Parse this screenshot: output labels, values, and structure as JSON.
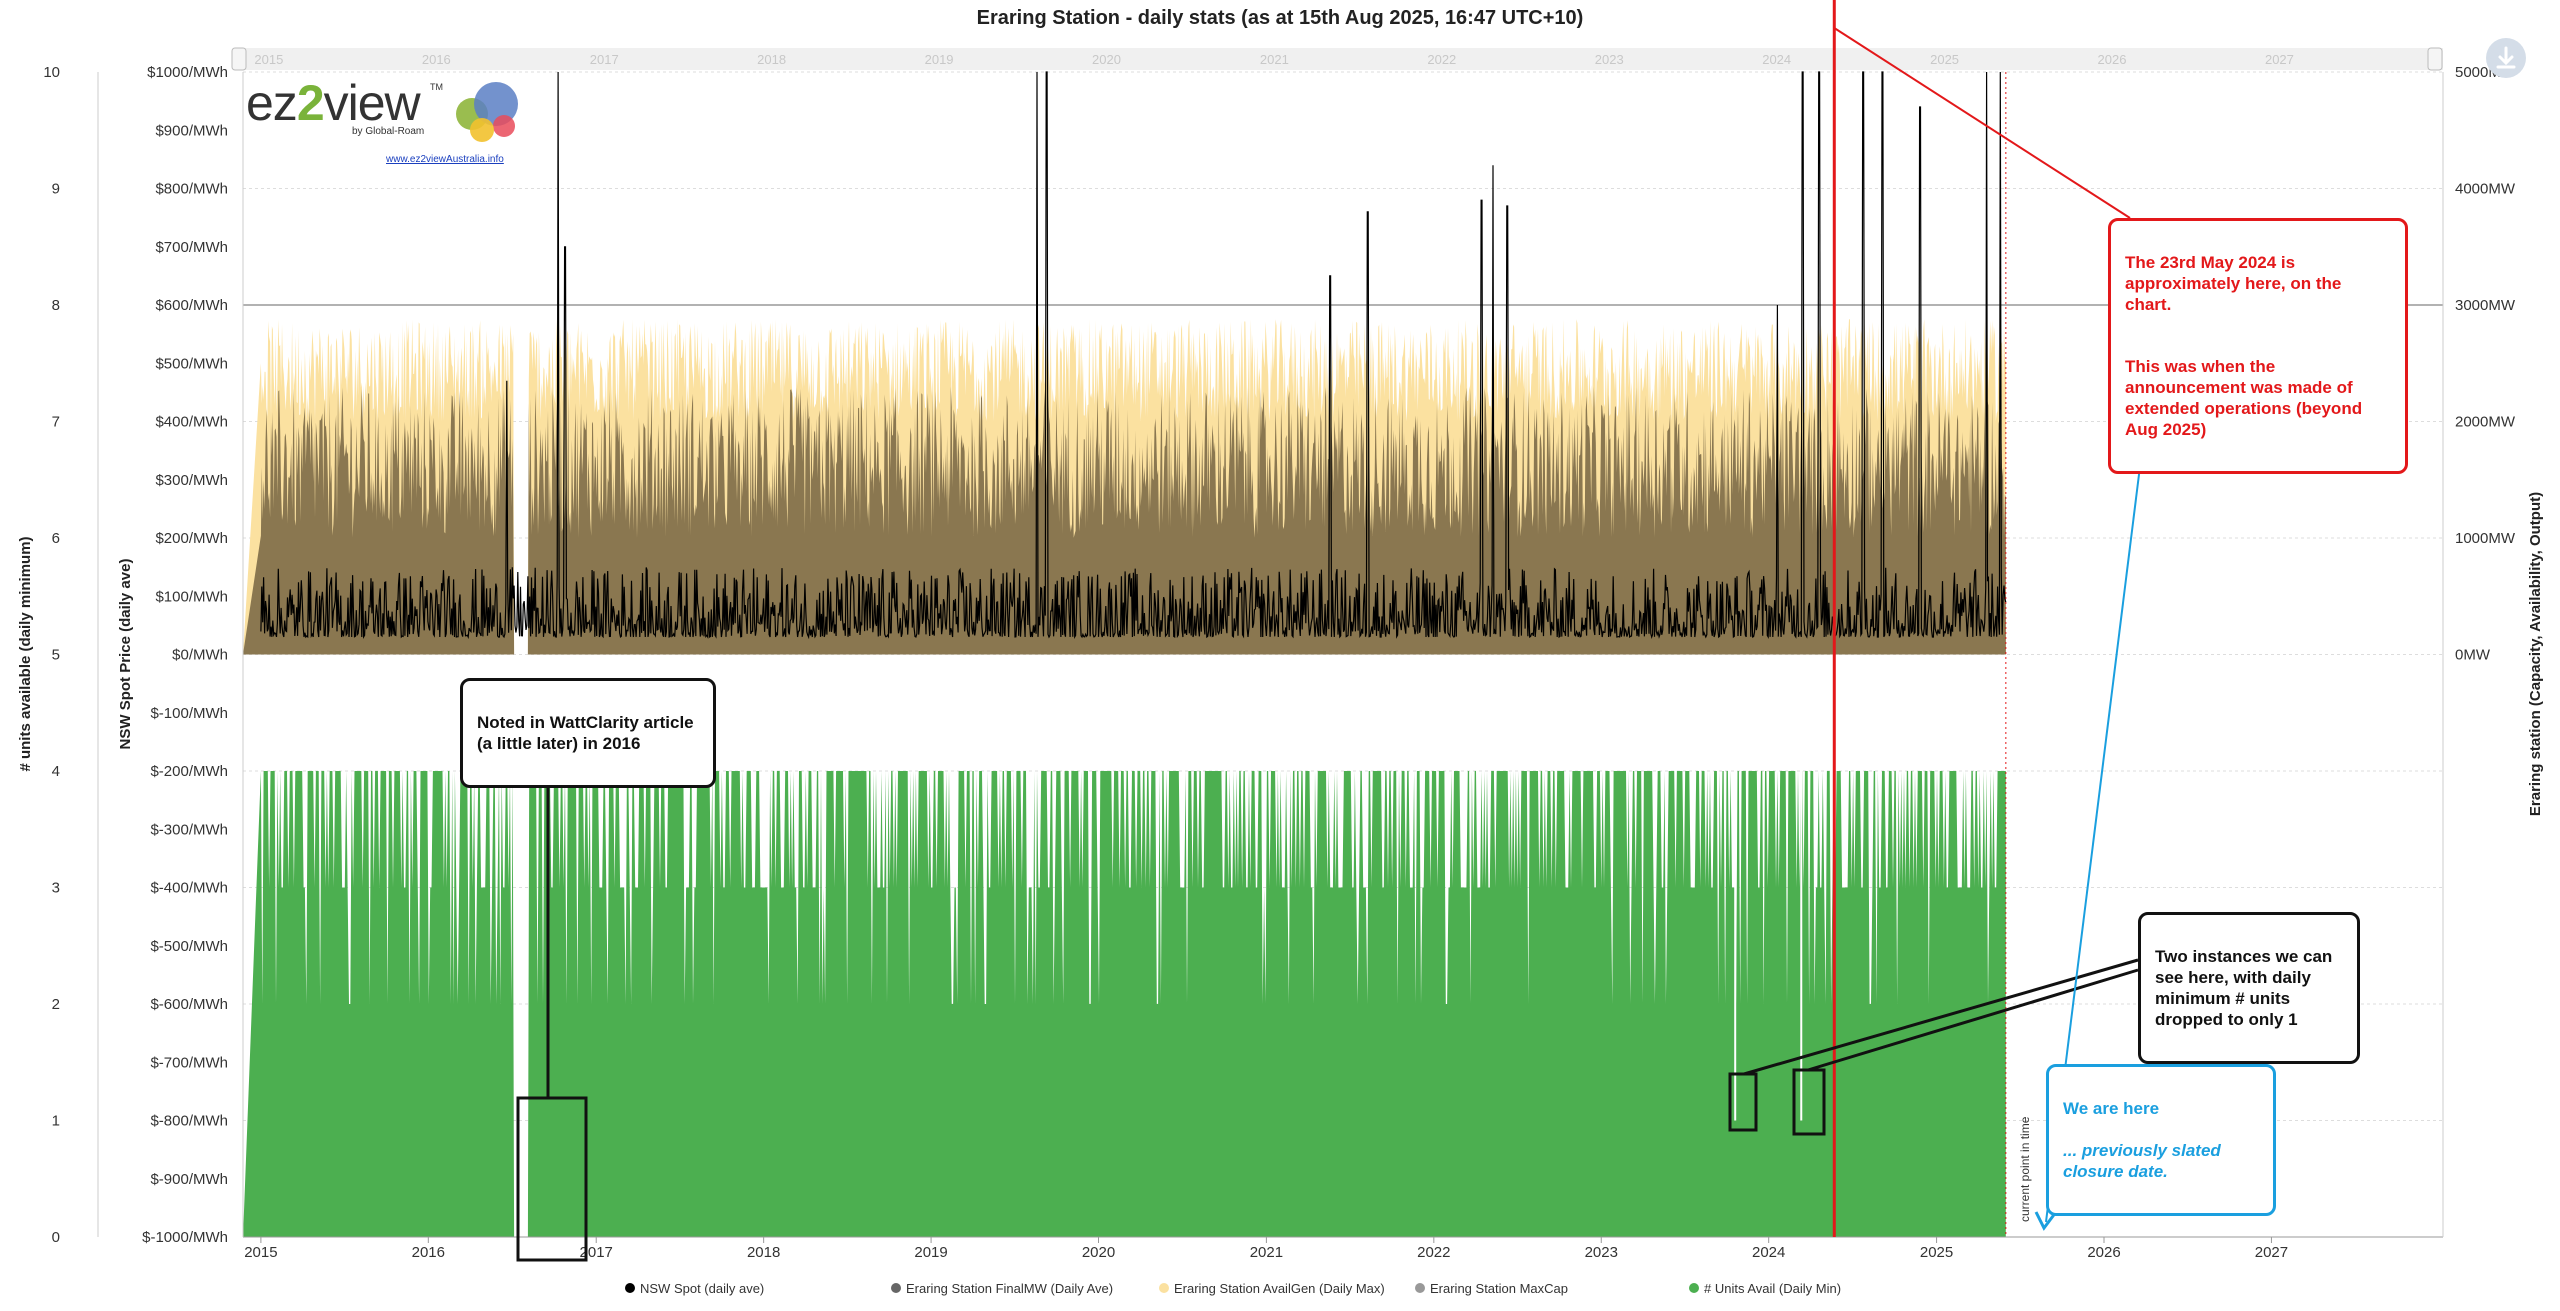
{
  "chart_data": {
    "type": "area",
    "title": "Eraring Station - daily stats (as at 15th Aug 2025, 16:47 UTC+10)",
    "x_axis": {
      "type": "date",
      "range": [
        "2014-11-23",
        "2028-01-10"
      ],
      "tick_labels": [
        "2015",
        "2016",
        "2017",
        "2018",
        "2019",
        "2020",
        "2021",
        "2022",
        "2023",
        "2024",
        "2025",
        "2026",
        "2027"
      ],
      "navigator_labels": [
        "2015",
        "2016",
        "2017",
        "2018",
        "2019",
        "2020",
        "2021",
        "2022",
        "2023",
        "2024",
        "2025",
        "2026",
        "2027"
      ]
    },
    "y_axes": {
      "units": {
        "title": "# units available (daily minimum)",
        "range": [
          0,
          10
        ],
        "tick_labels": [
          "0",
          "1",
          "2",
          "3",
          "4",
          "5",
          "6",
          "7",
          "8",
          "9",
          "10"
        ]
      },
      "price": {
        "title": "NSW Spot Price (daily ave)",
        "range": [
          -1000,
          1000
        ],
        "tick_labels": [
          "$-1000/MWh",
          "$-900/MWh",
          "$-800/MWh",
          "$-700/MWh",
          "$-600/MWh",
          "$-500/MWh",
          "$-400/MWh",
          "$-300/MWh",
          "$-200/MWh",
          "$-100/MWh",
          "$0/MWh",
          "$100/MWh",
          "$200/MWh",
          "$300/MWh",
          "$400/MWh",
          "$500/MWh",
          "$600/MWh",
          "$700/MWh",
          "$800/MWh",
          "$900/MWh",
          "$1000/MWh"
        ]
      },
      "mw": {
        "title": "Eraring station (Capacity, Availability, Output)",
        "range": [
          0,
          5000
        ],
        "tick_labels": [
          "0MW",
          "1000MW",
          "2000MW",
          "3000MW",
          "4000MW",
          "5000MW"
        ]
      }
    },
    "series": [
      {
        "name": "NSW Spot (daily ave)",
        "color": "#000000",
        "axis": "price",
        "typical_range": [
          30,
          150
        ],
        "spikes": [
          {
            "date": "2016-06-20",
            "value": 470
          },
          {
            "date": "2016-10-10",
            "value": 1000
          },
          {
            "date": "2016-10-25",
            "value": 700
          },
          {
            "date": "2019-08-20",
            "value": 1000
          },
          {
            "date": "2019-09-10",
            "value": 1000
          },
          {
            "date": "2021-05-20",
            "value": 650
          },
          {
            "date": "2021-08-10",
            "value": 760
          },
          {
            "date": "2022-04-15",
            "value": 780
          },
          {
            "date": "2022-05-10",
            "value": 840
          },
          {
            "date": "2022-06-10",
            "value": 770
          },
          {
            "date": "2024-01-20",
            "value": 600
          },
          {
            "date": "2024-03-15",
            "value": 1000
          },
          {
            "date": "2024-04-20",
            "value": 1000
          },
          {
            "date": "2024-07-25",
            "value": 1000
          },
          {
            "date": "2024-09-05",
            "value": 1000
          },
          {
            "date": "2024-11-26",
            "value": 940
          },
          {
            "date": "2025-04-20",
            "value": 1000
          },
          {
            "date": "2025-05-20",
            "value": 1000
          }
        ]
      },
      {
        "name": "Eraring Station FinalMW (Daily Ave)",
        "color": "#8a7750",
        "axis": "mw",
        "typical_range": [
          1000,
          2300
        ],
        "zero_gap": [
          "2016-07-05",
          "2016-08-05"
        ]
      },
      {
        "name": "Eraring Station AvailGen (Daily Max)",
        "color": "#fbe1a0",
        "axis": "mw",
        "typical_range": [
          2000,
          2880
        ],
        "zero_gap": [
          "2016-07-05",
          "2016-08-05"
        ]
      },
      {
        "name": "Eraring Station MaxCap",
        "color": "#999999",
        "axis": "mw",
        "value": 3000
      },
      {
        "name": "# Units Avail (Daily Min)",
        "color": "#4caf50",
        "axis": "units",
        "levels": [
          0,
          1,
          2,
          3,
          4
        ],
        "typical": 4,
        "gaps": [
          [
            "2016-07-05",
            "2016-08-05"
          ]
        ],
        "min_instances": [
          {
            "date": "2023-10-20",
            "value": 1
          },
          {
            "date": "2024-03-12",
            "value": 1
          }
        ]
      }
    ],
    "current_point": {
      "date": "2025-06-01",
      "label": "current point in time"
    },
    "marker_date": "2024-05-23",
    "legend_position": "bottom",
    "grid": true
  },
  "logo": {
    "brand_prefix": "ez",
    "brand_digit": "2",
    "brand_suffix": "view",
    "tm": "TM",
    "by": "by Global-Roam",
    "url": "www.ez2viewAustralia.info"
  },
  "annotations": {
    "red": {
      "line1": "The 23rd May 2024 is approximately here, on the chart.",
      "line2": "This was when the announcement was made of extended operations (beyond Aug 2025)"
    },
    "black1": {
      "text": "Noted in WattClarity article (a little later) in 2016"
    },
    "black2": {
      "text": "Two instances we can see here, with daily minimum # units dropped to only 1"
    },
    "blue": {
      "line1": "We are here",
      "line2": "... previously slated closure date."
    }
  }
}
